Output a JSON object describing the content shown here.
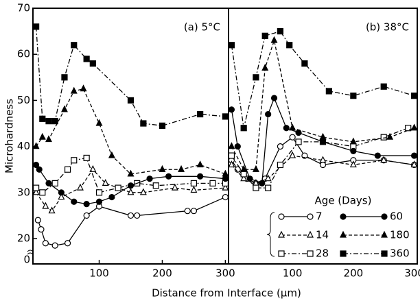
{
  "chart_data": [
    {
      "type": "line",
      "title": "(a) 5°C",
      "ylabel": "Microhardness",
      "xlabel": "Distance from Interface (μm)",
      "xlim": [
        -5,
        305
      ],
      "xticks": [
        100,
        200,
        300
      ],
      "ylim": [
        14.5,
        70
      ],
      "yticks": [
        20,
        30,
        40,
        50,
        60,
        70
      ],
      "y_break_label": "0",
      "series": [
        {
          "color": "#000",
          "marker": "circle",
          "filled": false,
          "dash": "solid",
          "x": [
            3,
            8,
            15,
            30,
            50,
            80,
            100,
            150,
            160,
            240,
            250,
            300
          ],
          "values": [
            24,
            22,
            19,
            18.5,
            19,
            25,
            27,
            25,
            25,
            26,
            26,
            29
          ]
        },
        {
          "color": "#000",
          "marker": "triangle",
          "filled": false,
          "dash": "dashed",
          "x": [
            0,
            15,
            25,
            40,
            70,
            90,
            110,
            150,
            170,
            220,
            250,
            300
          ],
          "values": [
            30,
            27,
            26,
            29,
            31,
            35,
            32,
            30,
            30,
            31,
            30.5,
            31
          ]
        },
        {
          "color": "#000",
          "marker": "square",
          "filled": false,
          "dash": "dashdot",
          "x": [
            0,
            10,
            30,
            50,
            60,
            80,
            100,
            130,
            160,
            190,
            250,
            280,
            300
          ],
          "values": [
            31,
            30,
            32,
            35,
            37,
            37.5,
            30,
            31,
            32,
            31.5,
            32,
            32,
            32
          ]
        },
        {
          "color": "#000",
          "marker": "circle",
          "filled": true,
          "dash": "solid",
          "x": [
            0,
            5,
            20,
            40,
            60,
            80,
            100,
            120,
            150,
            180,
            210,
            260,
            300
          ],
          "values": [
            36,
            35,
            32,
            30,
            28,
            27.5,
            28,
            29,
            31.5,
            33,
            33.5,
            33.5,
            33
          ]
        },
        {
          "color": "#000",
          "marker": "triangle",
          "filled": true,
          "dash": "dashed",
          "x": [
            0,
            10,
            20,
            45,
            60,
            75,
            100,
            120,
            150,
            200,
            230,
            260,
            300
          ],
          "values": [
            40,
            42,
            41.5,
            48,
            52,
            52.5,
            45,
            38,
            34,
            35,
            35,
            36,
            34
          ]
        },
        {
          "color": "#000",
          "marker": "square",
          "filled": true,
          "dash": "dashdot",
          "x": [
            0,
            10,
            20,
            30,
            45,
            60,
            80,
            90,
            150,
            170,
            200,
            260,
            300
          ],
          "values": [
            66,
            46,
            45.5,
            45.5,
            55,
            62,
            59,
            58,
            50,
            45,
            44.5,
            47,
            46.5
          ]
        }
      ]
    },
    {
      "type": "line",
      "title": "(b) 38°C",
      "legend_title": "Age (Days)",
      "xlim": [
        -5,
        305
      ],
      "xticks": [
        100,
        200,
        300
      ],
      "ylim": [
        14.5,
        70
      ],
      "series": [
        {
          "name": "7",
          "color": "#000",
          "marker": "circle",
          "filled": false,
          "dash": "solid",
          "x": [
            0,
            10,
            25,
            40,
            55,
            80,
            100,
            120,
            150,
            200,
            250,
            300
          ],
          "values": [
            37,
            35,
            33,
            32,
            33,
            40,
            42,
            38,
            36,
            37,
            37,
            36
          ]
        },
        {
          "name": "14",
          "color": "#000",
          "marker": "triangle",
          "filled": false,
          "dash": "dashed",
          "x": [
            0,
            20,
            40,
            60,
            100,
            150,
            200,
            250,
            300
          ],
          "values": [
            36,
            33,
            32,
            33,
            38,
            37,
            36,
            37,
            36
          ]
        },
        {
          "name": "28",
          "color": "#000",
          "marker": "square",
          "filled": false,
          "dash": "dashdot",
          "x": [
            0,
            20,
            40,
            60,
            80,
            110,
            150,
            200,
            250,
            290
          ],
          "values": [
            38,
            34,
            31,
            31,
            36,
            41,
            41,
            40,
            42,
            44
          ]
        },
        {
          "name": "60",
          "color": "#000",
          "marker": "circle",
          "filled": true,
          "dash": "solid",
          "x": [
            0,
            10,
            30,
            50,
            60,
            70,
            90,
            110,
            150,
            200,
            240,
            300
          ],
          "values": [
            48,
            40,
            33,
            32,
            47,
            50.5,
            44,
            43,
            41,
            39,
            38,
            38
          ]
        },
        {
          "name": "180",
          "color": "#000",
          "marker": "triangle",
          "filled": true,
          "dash": "dashed",
          "x": [
            0,
            20,
            40,
            55,
            70,
            100,
            150,
            200,
            260,
            300
          ],
          "values": [
            40,
            35,
            35,
            57,
            63,
            44,
            42,
            41,
            42,
            44
          ]
        },
        {
          "name": "360",
          "color": "#000",
          "marker": "square",
          "filled": true,
          "dash": "dashdot",
          "x": [
            0,
            20,
            40,
            55,
            80,
            95,
            120,
            160,
            200,
            250,
            300
          ],
          "values": [
            62,
            44,
            55,
            64,
            65,
            62,
            58,
            52,
            51,
            53,
            51
          ]
        }
      ]
    }
  ]
}
